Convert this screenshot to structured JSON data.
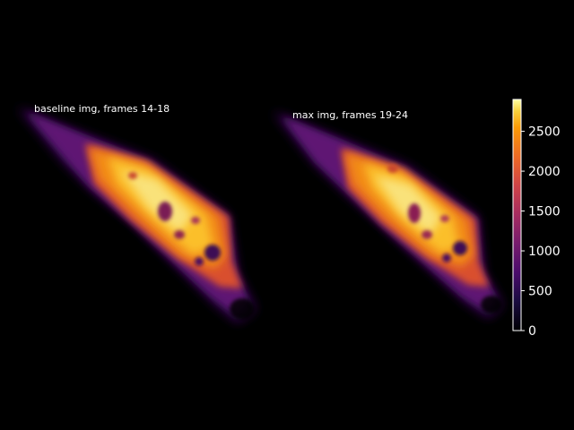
{
  "figure": {
    "panels": [
      {
        "title": "baseline img, frames 14-18"
      },
      {
        "title": "max img, frames 19-24"
      }
    ],
    "colorbar": {
      "colormap": "inferno",
      "min": 0,
      "max": 2900,
      "ticks": [
        "0",
        "500",
        "1000",
        "1500",
        "2000",
        "2500"
      ],
      "tick_values": [
        0,
        500,
        1000,
        1500,
        2000,
        2500
      ]
    }
  }
}
